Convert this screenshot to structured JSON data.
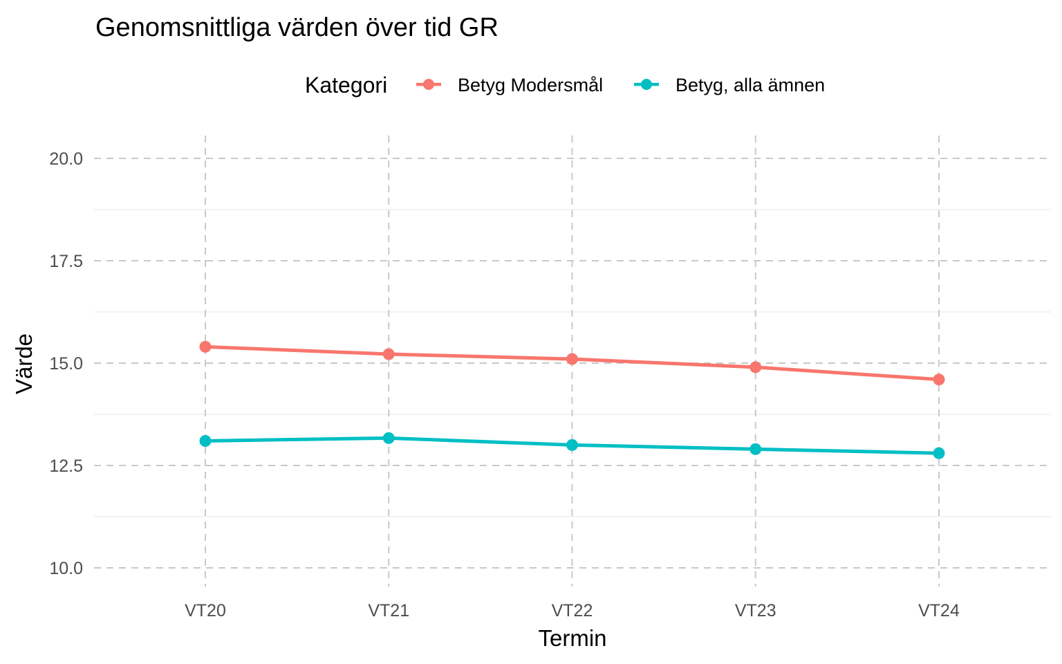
{
  "chart_data": {
    "type": "line",
    "title": "Genomsnittliga värden över tid GR",
    "xlabel": "Termin",
    "ylabel": "Värde",
    "legend_title": "Kategori",
    "legend_position": "top",
    "categories": [
      "VT20",
      "VT21",
      "VT22",
      "VT23",
      "VT24"
    ],
    "ylim": [
      10,
      20
    ],
    "yticks": [
      10.0,
      12.5,
      15.0,
      17.5,
      20.0
    ],
    "ytick_labels": [
      "10.0",
      "12.5",
      "15.0",
      "17.5",
      "20.0"
    ],
    "grid": true,
    "series": [
      {
        "name": "Betyg Modersmål",
        "color": "#F8766D",
        "values": [
          15.4,
          15.22,
          15.1,
          14.9,
          14.6
        ]
      },
      {
        "name": "Betyg, alla ämnen",
        "color": "#00BFC4",
        "values": [
          13.1,
          13.17,
          13.0,
          12.9,
          12.8
        ]
      }
    ]
  }
}
